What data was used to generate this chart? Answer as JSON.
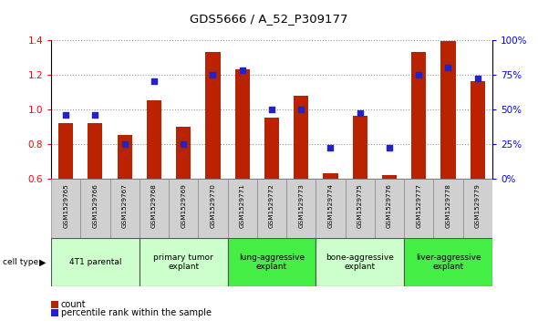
{
  "title": "GDS5666 / A_52_P309177",
  "samples": [
    "GSM1529765",
    "GSM1529766",
    "GSM1529767",
    "GSM1529768",
    "GSM1529769",
    "GSM1529770",
    "GSM1529771",
    "GSM1529772",
    "GSM1529773",
    "GSM1529774",
    "GSM1529775",
    "GSM1529776",
    "GSM1529777",
    "GSM1529778",
    "GSM1529779"
  ],
  "count_values": [
    0.92,
    0.92,
    0.85,
    1.05,
    0.9,
    1.33,
    1.23,
    0.95,
    1.08,
    0.63,
    0.96,
    0.62,
    1.33,
    1.39,
    1.16
  ],
  "percentile_values": [
    0.46,
    0.46,
    0.25,
    0.7,
    0.25,
    0.75,
    0.78,
    0.5,
    0.5,
    0.22,
    0.47,
    0.22,
    0.75,
    0.8,
    0.72
  ],
  "ylim_left": [
    0.6,
    1.4
  ],
  "ylim_right": [
    0.0,
    1.0
  ],
  "yticks_left": [
    0.6,
    0.8,
    1.0,
    1.2,
    1.4
  ],
  "yticks_right": [
    0.0,
    0.25,
    0.5,
    0.75,
    1.0
  ],
  "ytick_labels_right": [
    "0%",
    "25%",
    "50%",
    "75%",
    "100%"
  ],
  "ytick_labels_left": [
    "0.6",
    "0.8",
    "1.0",
    "1.2",
    "1.4"
  ],
  "bar_color": "#bb2200",
  "marker_color": "#2222cc",
  "grid_color": "#999999",
  "cell_type_groups": [
    {
      "label": "4T1 parental",
      "start": 0,
      "end": 3,
      "color": "#ccffcc"
    },
    {
      "label": "primary tumor\nexplant",
      "start": 3,
      "end": 6,
      "color": "#ccffcc"
    },
    {
      "label": "lung-aggressive\nexplant",
      "start": 6,
      "end": 9,
      "color": "#44ee44"
    },
    {
      "label": "bone-aggressive\nexplant",
      "start": 9,
      "end": 12,
      "color": "#ccffcc"
    },
    {
      "label": "liver-aggressive\nexplant",
      "start": 12,
      "end": 15,
      "color": "#44ee44"
    }
  ],
  "legend_count_label": "count",
  "legend_pct_label": "percentile rank within the sample",
  "cell_type_label": "cell type",
  "background_color": "#ffffff",
  "sample_box_color": "#d0d0d0"
}
